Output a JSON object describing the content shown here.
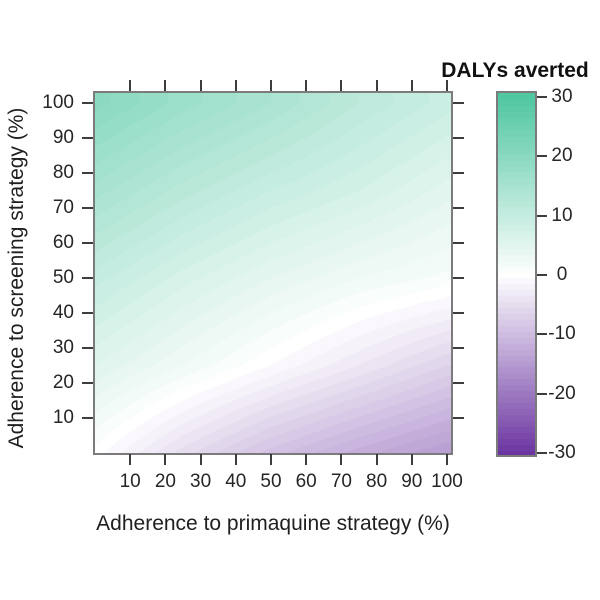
{
  "chart_data": {
    "type": "heatmap",
    "xlabel": "Adherence to primaquine strategy (%)",
    "ylabel": "Adherence to screening strategy (%)",
    "legend_title": "DALYs averted",
    "x_ticks": [
      "10",
      "20",
      "30",
      "40",
      "50",
      "60",
      "70",
      "80",
      "90",
      "100"
    ],
    "x_tick_values": [
      10,
      20,
      30,
      40,
      50,
      60,
      70,
      80,
      90,
      100
    ],
    "y_ticks": [
      "10",
      "20",
      "30",
      "40",
      "50",
      "60",
      "70",
      "80",
      "90",
      "100"
    ],
    "y_tick_values": [
      10,
      20,
      30,
      40,
      50,
      60,
      70,
      80,
      90,
      100
    ],
    "xlim": [
      0,
      101
    ],
    "ylim": [
      0,
      103
    ],
    "grid": false,
    "legend_position": "right-colorbar",
    "colorbar": {
      "ticks": [
        "30",
        "20",
        "10",
        "0",
        "-10",
        "-20",
        "-30"
      ],
      "tick_values": [
        30,
        20,
        10,
        0,
        -10,
        -20,
        -30
      ],
      "vmin": -30,
      "vmax": 30,
      "color_max": "#50c6a1",
      "color_zero": "#ffffff",
      "color_min": "#6b35a1",
      "level_step": 1
    },
    "field": {
      "comment": "DALYs averted as function of x=primaquine adherence, y=screening adherence; rows ordered y=0,25,50,75,100; cols x=0,25,50,75,100",
      "x": [
        0,
        25,
        50,
        75,
        100
      ],
      "y": [
        0,
        25,
        50,
        75,
        100
      ],
      "values": [
        [
          0,
          -5,
          -9,
          -12,
          -14.5
        ],
        [
          5.5,
          2.5,
          -0.5,
          -3.5,
          -6.5
        ],
        [
          10,
          7,
          4.5,
          2.5,
          1.2
        ],
        [
          15,
          12,
          9.5,
          7.5,
          5
        ],
        [
          20,
          17,
          14.5,
          11.5,
          9
        ]
      ],
      "zero_contour_note": "white band from bottom-left corner rising to y≈43 at x=100"
    },
    "frame_color": "#7b7b7b",
    "tick_color": "#3d3d3d",
    "text_color": "#1f1f1f"
  }
}
